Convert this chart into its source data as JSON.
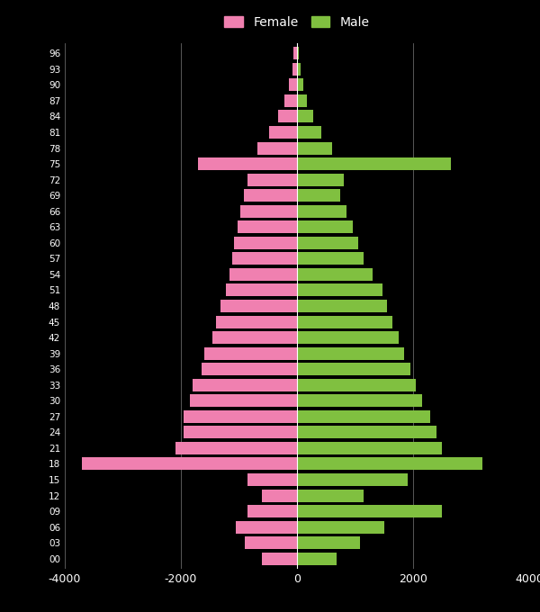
{
  "ages": [
    0,
    3,
    6,
    9,
    12,
    15,
    18,
    21,
    24,
    27,
    30,
    33,
    36,
    39,
    42,
    45,
    48,
    51,
    54,
    57,
    60,
    63,
    66,
    69,
    72,
    75,
    78,
    81,
    84,
    87,
    90,
    93,
    96
  ],
  "female": [
    600,
    900,
    1050,
    850,
    600,
    850,
    3700,
    2100,
    1950,
    1950,
    1850,
    1800,
    1650,
    1600,
    1450,
    1400,
    1320,
    1220,
    1170,
    1120,
    1080,
    1030,
    970,
    920,
    850,
    1700,
    680,
    480,
    320,
    210,
    140,
    85,
    55
  ],
  "male": [
    680,
    1080,
    1500,
    2500,
    1150,
    1900,
    3200,
    2500,
    2400,
    2300,
    2150,
    2050,
    1950,
    1850,
    1750,
    1650,
    1550,
    1480,
    1300,
    1150,
    1050,
    960,
    850,
    750,
    800,
    2650,
    600,
    420,
    280,
    170,
    105,
    65,
    32
  ],
  "female_color": "#f080b0",
  "male_color": "#80c040",
  "bg_color": "#000000",
  "text_color": "#ffffff",
  "grid_color": "#666666",
  "xlim": [
    -4000,
    4000
  ],
  "xticks": [
    -4000,
    -2000,
    0,
    2000,
    4000
  ],
  "xtick_labels": [
    "-4000",
    "-2000",
    "0",
    "2000",
    "4000"
  ],
  "bar_height": 2.4
}
